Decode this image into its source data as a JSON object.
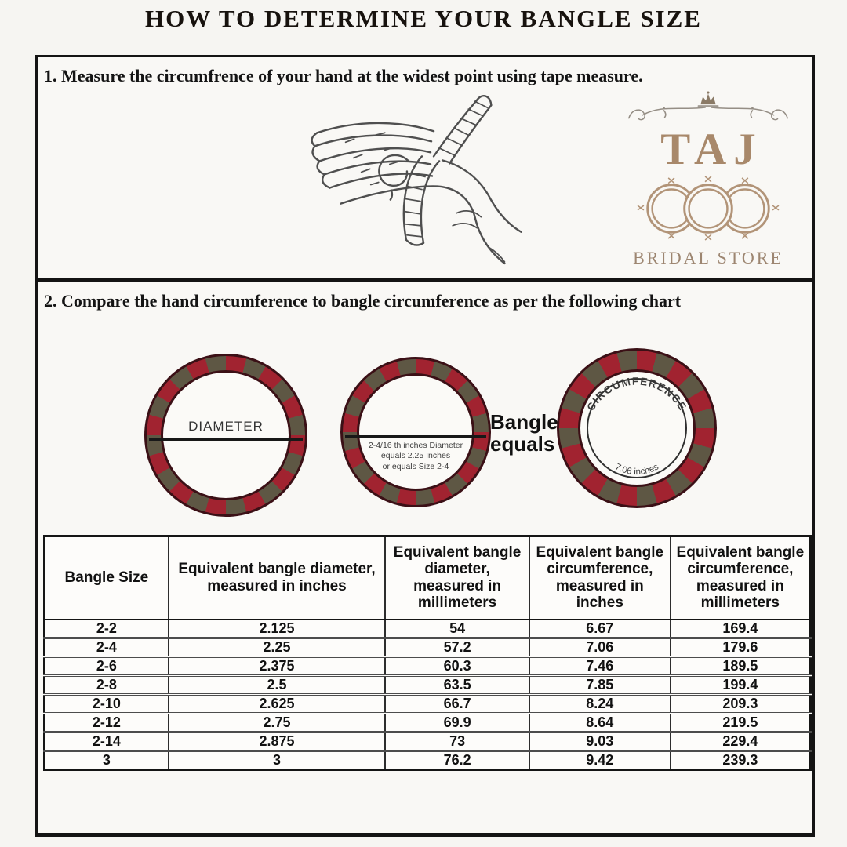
{
  "page": {
    "title": "HOW TO DETERMINE YOUR BANGLE SIZE"
  },
  "step1": {
    "text": "1. Measure the circumfrence of your hand at the widest point using tape measure."
  },
  "step2": {
    "text": "2. Compare the hand circumference to bangle circumference as per the following chart"
  },
  "logo": {
    "name": "TAJ",
    "subtitle": "BRIDAL STORE"
  },
  "diagram": {
    "circle1_label": "DIAMETER",
    "circle2_note_line1": "2-4/16 th inches Diameter",
    "circle2_note_line2": "equals 2.25 Inches",
    "circle2_note_line3": "or equals Size 2-4",
    "equals_label_line1": "Bangle",
    "equals_label_line2": "equals",
    "circle3_top_label": "CIRCUMFERENCE",
    "circle3_bottom_label": "7.06 inches"
  },
  "table": {
    "headers": [
      "Bangle Size",
      "Equivalent bangle diameter, measured in inches",
      "Equivalent bangle diameter, measured in millimeters",
      "Equivalent bangle circumference, measured in inches",
      "Equivalent bangle circumference, measured in millimeters"
    ],
    "rows": [
      [
        "2-2",
        "2.125",
        "54",
        "6.67",
        "169.4"
      ],
      [
        "2-4",
        "2.25",
        "57.2",
        "7.06",
        "179.6"
      ],
      [
        "2-6",
        "2.375",
        "60.3",
        "7.46",
        "189.5"
      ],
      [
        "2-8",
        "2.5",
        "63.5",
        "7.85",
        "199.4"
      ],
      [
        "2-10",
        "2.625",
        "66.7",
        "8.24",
        "209.3"
      ],
      [
        "2-12",
        "2.75",
        "69.9",
        "8.64",
        "219.5"
      ],
      [
        "2-14",
        "2.875",
        "73",
        "9.03",
        "229.4"
      ],
      [
        "3",
        "3",
        "76.2",
        "9.42",
        "239.3"
      ]
    ]
  },
  "colors": {
    "ring_red": "#a12330",
    "ring_olive": "#5e5744",
    "ring_outline": "#3b1016",
    "logo_tan": "#a8886a",
    "logo_gray": "#958e85",
    "ink": "#141414"
  }
}
